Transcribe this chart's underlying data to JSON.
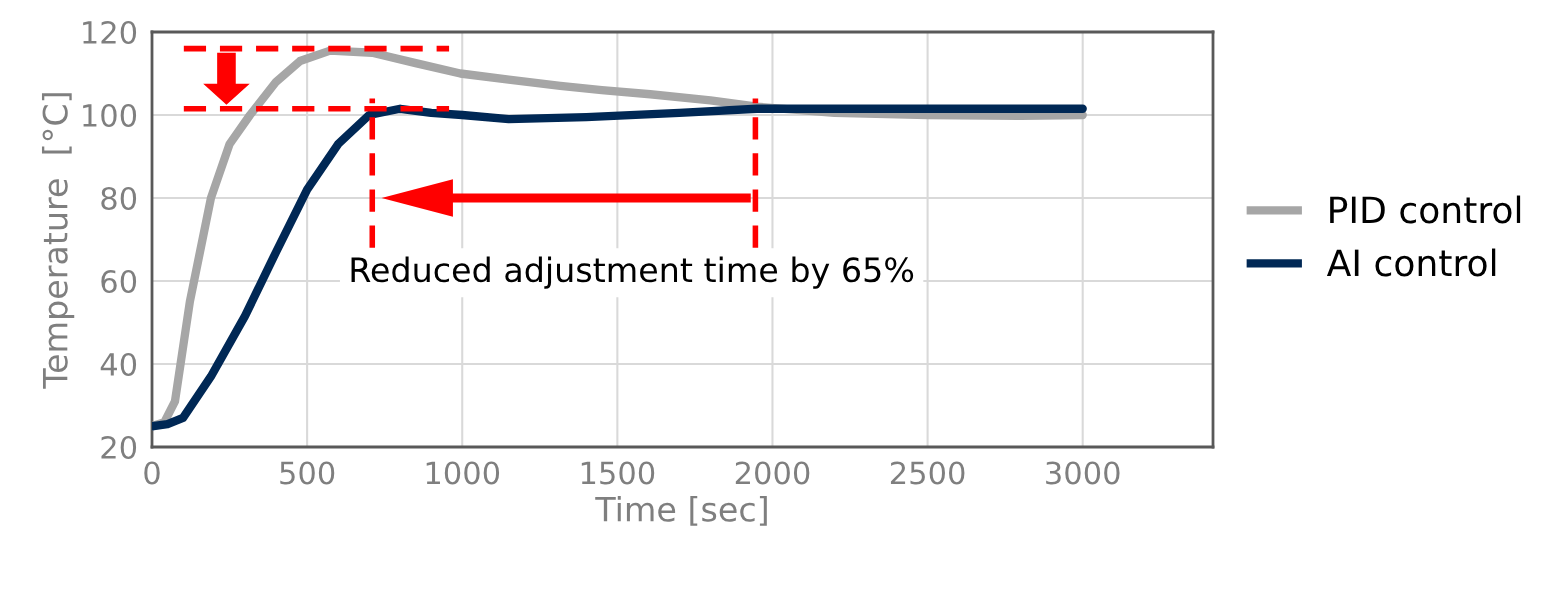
{
  "chart_data": {
    "type": "line",
    "xlabel": "Time [sec]",
    "ylabel": "Temperature  [°C]",
    "series": [
      {
        "name": "PID control",
        "color": "#a6a6a6",
        "x": [
          0,
          40,
          74,
          122,
          190,
          250,
          316,
          400,
          477,
          574,
          710,
          850,
          994,
          1150,
          1316,
          1450,
          1606,
          1800,
          1950,
          2200,
          2500,
          2800,
          3000
        ],
        "values": [
          25,
          26,
          31,
          55,
          80,
          93,
          100,
          108,
          113,
          115.5,
          115,
          112.5,
          110,
          108.5,
          107,
          106,
          105,
          103.5,
          102,
          100.5,
          100,
          99.8,
          100
        ]
      },
      {
        "name": "AI control",
        "color": "#002855",
        "x": [
          0,
          50,
          100,
          190,
          300,
          400,
          500,
          600,
          700,
          800,
          900,
          1000,
          1150,
          1400,
          1700,
          1950,
          2200,
          2500,
          2800,
          3000
        ],
        "values": [
          25,
          25.5,
          27,
          37,
          51.6,
          67,
          82,
          93,
          100,
          101.5,
          100.5,
          100,
          99,
          99.5,
          100.5,
          101.5,
          101.5,
          101.5,
          101.5,
          101.5
        ]
      }
    ],
    "xlim": [
      0,
      3420
    ],
    "ylim": [
      20,
      120
    ],
    "xticks": [
      0,
      500,
      1000,
      1500,
      2000,
      2500,
      3000
    ],
    "yticks": [
      20,
      40,
      60,
      80,
      100,
      120
    ],
    "grid": true,
    "legend": "right",
    "ref_lines": [
      {
        "axis": "y",
        "value": 116,
        "color": "#ff0000",
        "line_style": "dashed"
      },
      {
        "axis": "y",
        "value": 101.5,
        "color": "#ff0000",
        "line_style": "dashed"
      },
      {
        "axis": "x",
        "value": 710,
        "color": "#ff0000",
        "line_style": "dashed"
      },
      {
        "axis": "x",
        "value": 1945,
        "color": "#ff0000",
        "line_style": "dashed"
      }
    ],
    "annotations": [
      "Reduced adjustment time by 65%"
    ]
  }
}
